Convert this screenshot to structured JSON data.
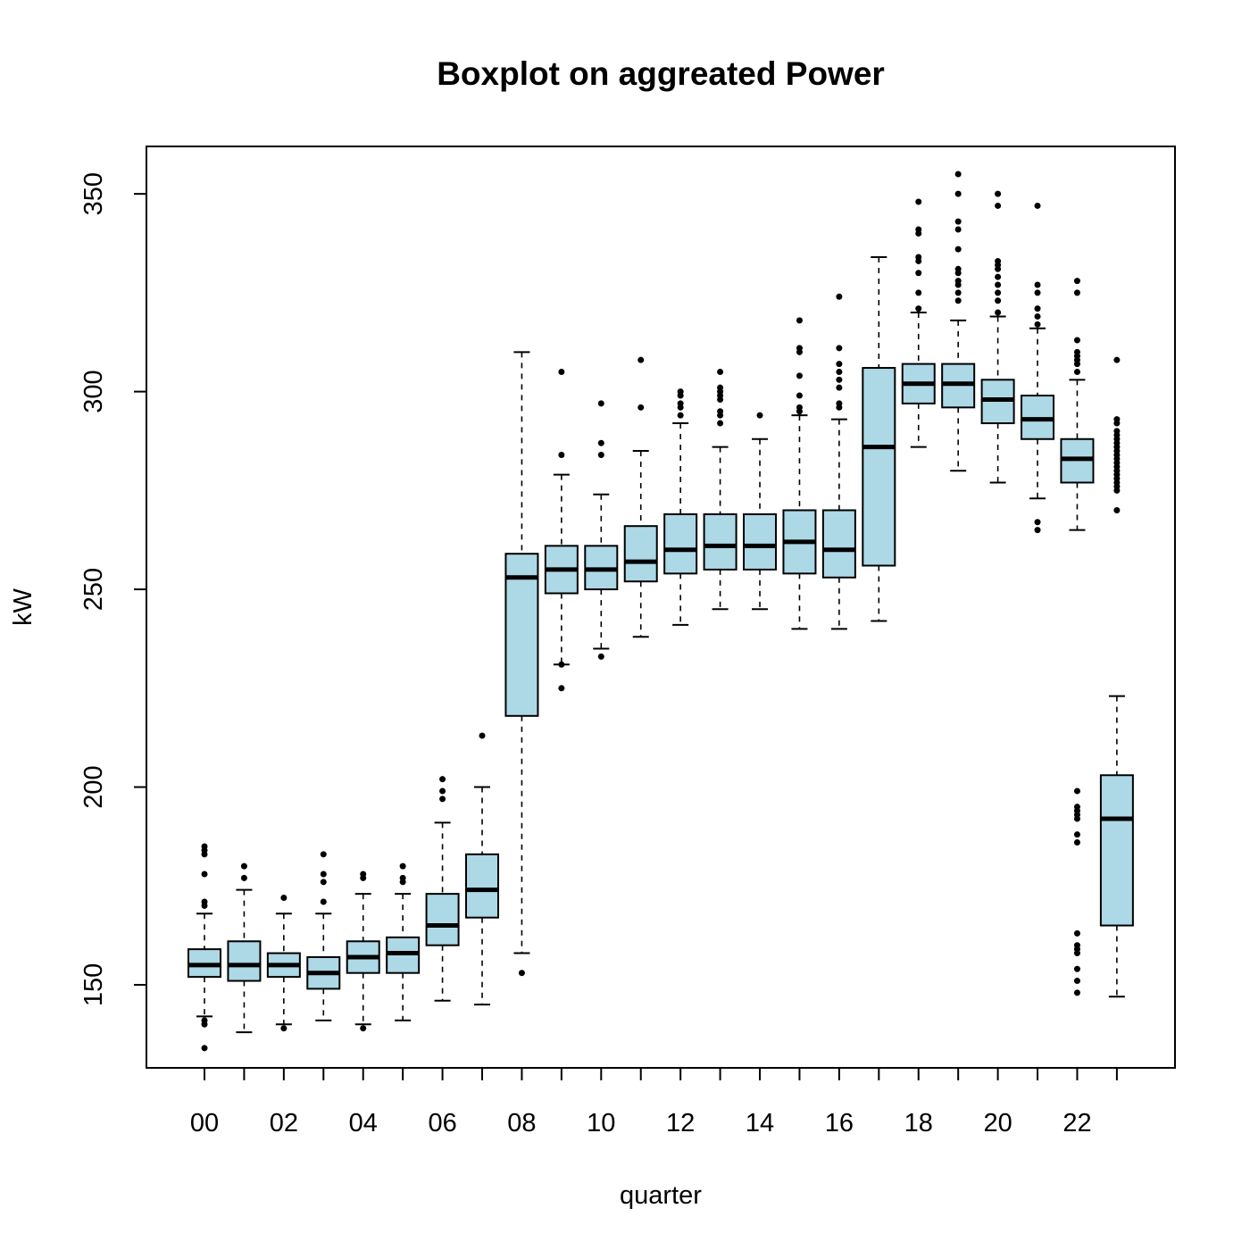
{
  "chart_data": {
    "type": "boxplot",
    "title": "Boxplot on aggreated Power",
    "xlabel": "quarter",
    "ylabel": "kW",
    "ylim": [
      129,
      362
    ],
    "yticks": [
      "150",
      "200",
      "250",
      "300",
      "350"
    ],
    "categories": [
      "00",
      "01",
      "02",
      "03",
      "04",
      "05",
      "06",
      "07",
      "08",
      "09",
      "10",
      "11",
      "12",
      "13",
      "14",
      "15",
      "16",
      "17",
      "18",
      "19",
      "20",
      "21",
      "22",
      "23"
    ],
    "x_tick_labels": [
      "00",
      "02",
      "04",
      "06",
      "08",
      "10",
      "12",
      "14",
      "16",
      "18",
      "20",
      "22"
    ],
    "box_color": "#add8e6",
    "boxes": [
      {
        "category": "00",
        "low": 142,
        "q1": 152,
        "median": 155,
        "q3": 159,
        "high": 168,
        "outliers": [
          134,
          140,
          141,
          170,
          171,
          178,
          183,
          184,
          185
        ]
      },
      {
        "category": "01",
        "low": 138,
        "q1": 151,
        "median": 155,
        "q3": 161,
        "high": 174,
        "outliers": [
          177,
          180
        ]
      },
      {
        "category": "02",
        "low": 140,
        "q1": 152,
        "median": 155,
        "q3": 158,
        "high": 168,
        "outliers": [
          139,
          172
        ]
      },
      {
        "category": "03",
        "low": 141,
        "q1": 149,
        "median": 153,
        "q3": 157,
        "high": 168,
        "outliers": [
          171,
          176,
          178,
          183
        ]
      },
      {
        "category": "04",
        "low": 140,
        "q1": 153,
        "median": 157,
        "q3": 161,
        "high": 173,
        "outliers": [
          139,
          177,
          178
        ]
      },
      {
        "category": "05",
        "low": 141,
        "q1": 153,
        "median": 158,
        "q3": 162,
        "high": 173,
        "outliers": [
          176,
          177,
          180
        ]
      },
      {
        "category": "06",
        "low": 146,
        "q1": 160,
        "median": 165,
        "q3": 173,
        "high": 191,
        "outliers": [
          197,
          199,
          202
        ]
      },
      {
        "category": "07",
        "low": 145,
        "q1": 167,
        "median": 174,
        "q3": 183,
        "high": 200,
        "outliers": [
          213
        ]
      },
      {
        "category": "08",
        "low": 158,
        "q1": 218,
        "median": 253,
        "q3": 259,
        "high": 310,
        "outliers": [
          153
        ]
      },
      {
        "category": "09",
        "low": 231,
        "q1": 249,
        "median": 255,
        "q3": 261,
        "high": 279,
        "outliers": [
          225,
          231,
          284,
          305
        ]
      },
      {
        "category": "10",
        "low": 235,
        "q1": 250,
        "median": 255,
        "q3": 261,
        "high": 274,
        "outliers": [
          233,
          284,
          287,
          297
        ]
      },
      {
        "category": "11",
        "low": 238,
        "q1": 252,
        "median": 257,
        "q3": 266,
        "high": 285,
        "outliers": [
          296,
          308
        ]
      },
      {
        "category": "12",
        "low": 241,
        "q1": 254,
        "median": 260,
        "q3": 269,
        "high": 292,
        "outliers": [
          294,
          296,
          297,
          299,
          300
        ]
      },
      {
        "category": "13",
        "low": 245,
        "q1": 255,
        "median": 261,
        "q3": 269,
        "high": 286,
        "outliers": [
          292,
          294,
          295,
          298,
          299,
          300,
          301,
          305
        ]
      },
      {
        "category": "14",
        "low": 245,
        "q1": 255,
        "median": 261,
        "q3": 269,
        "high": 288,
        "outliers": [
          294
        ]
      },
      {
        "category": "15",
        "low": 240,
        "q1": 254,
        "median": 262,
        "q3": 270,
        "high": 294,
        "outliers": [
          295,
          296,
          299,
          304,
          310,
          311,
          318
        ]
      },
      {
        "category": "16",
        "low": 240,
        "q1": 253,
        "median": 260,
        "q3": 270,
        "high": 293,
        "outliers": [
          296,
          297,
          301,
          303,
          305,
          307,
          311,
          324
        ]
      },
      {
        "category": "17",
        "low": 242,
        "q1": 256,
        "median": 286,
        "q3": 306,
        "high": 334,
        "outliers": []
      },
      {
        "category": "18",
        "low": 286,
        "q1": 297,
        "median": 302,
        "q3": 307,
        "high": 320,
        "outliers": [
          321,
          325,
          330,
          333,
          334,
          340,
          341,
          348
        ]
      },
      {
        "category": "19",
        "low": 280,
        "q1": 296,
        "median": 302,
        "q3": 307,
        "high": 318,
        "outliers": [
          323,
          325,
          327,
          328,
          330,
          331,
          336,
          341,
          343,
          350,
          355
        ]
      },
      {
        "category": "20",
        "low": 277,
        "q1": 292,
        "median": 298,
        "q3": 303,
        "high": 319,
        "outliers": [
          320,
          323,
          325,
          327,
          329,
          331,
          332,
          333,
          347,
          350
        ]
      },
      {
        "category": "21",
        "low": 273,
        "q1": 288,
        "median": 293,
        "q3": 299,
        "high": 316,
        "outliers": [
          265,
          267,
          317,
          319,
          321,
          325,
          327,
          347
        ]
      },
      {
        "category": "22",
        "low": 265,
        "q1": 277,
        "median": 283,
        "q3": 288,
        "high": 303,
        "outliers": [
          148,
          151,
          154,
          158,
          159,
          160,
          163,
          186,
          188,
          192,
          193,
          194,
          195,
          199,
          305,
          307,
          308,
          309,
          310,
          313,
          325,
          328
        ]
      },
      {
        "category": "23",
        "low": 147,
        "q1": 165,
        "median": 192,
        "q3": 203,
        "high": 223,
        "outliers": [
          270,
          275,
          276,
          277,
          278,
          279,
          280,
          281,
          282,
          283,
          284,
          285,
          286,
          287,
          288,
          289,
          290,
          292,
          293,
          308
        ]
      }
    ]
  }
}
